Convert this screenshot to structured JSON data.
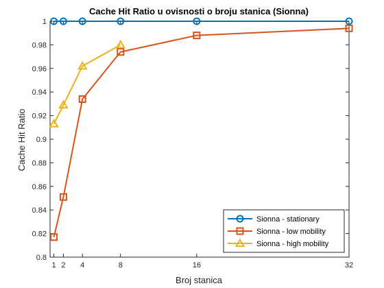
{
  "chart_data": {
    "type": "line",
    "title": "Cache Hit Ratio u ovisnosti o broju stanica (Sionna)",
    "xlabel": "Broj stanica",
    "ylabel": "Cache Hit Ratio",
    "xlim": [
      0.6,
      32
    ],
    "ylim": [
      0.8,
      1.0
    ],
    "x_ticks": [
      1,
      2,
      4,
      8,
      16,
      32
    ],
    "y_ticks": [
      0.8,
      0.82,
      0.84,
      0.86,
      0.88,
      0.9,
      0.92,
      0.94,
      0.96,
      0.98,
      1
    ],
    "x_tick_labels": [
      "1",
      "2",
      "4",
      "8",
      "16",
      "32"
    ],
    "y_tick_labels": [
      "0.8",
      "0.82",
      "0.84",
      "0.86",
      "0.88",
      "0.9",
      "0.92",
      "0.94",
      "0.96",
      "0.98",
      "1"
    ],
    "grid": false,
    "legend_position": "bottom-right",
    "series": [
      {
        "name": "Sionna - stationary",
        "color": "#0072BD",
        "marker": "circle",
        "x": [
          1,
          2,
          4,
          8,
          16,
          32
        ],
        "y": [
          1.0,
          1.0,
          1.0,
          1.0,
          1.0,
          1.0
        ]
      },
      {
        "name": "Sionna - low mobility",
        "color": "#D95319",
        "marker": "square",
        "x": [
          1,
          2,
          4,
          8,
          16,
          32
        ],
        "y": [
          0.817,
          0.851,
          0.934,
          0.974,
          0.988,
          0.994
        ]
      },
      {
        "name": "Sionna - high mobility",
        "color": "#EDB120",
        "marker": "triangle",
        "x": [
          1,
          2,
          4,
          8
        ],
        "y": [
          0.913,
          0.929,
          0.962,
          0.98
        ]
      }
    ]
  }
}
